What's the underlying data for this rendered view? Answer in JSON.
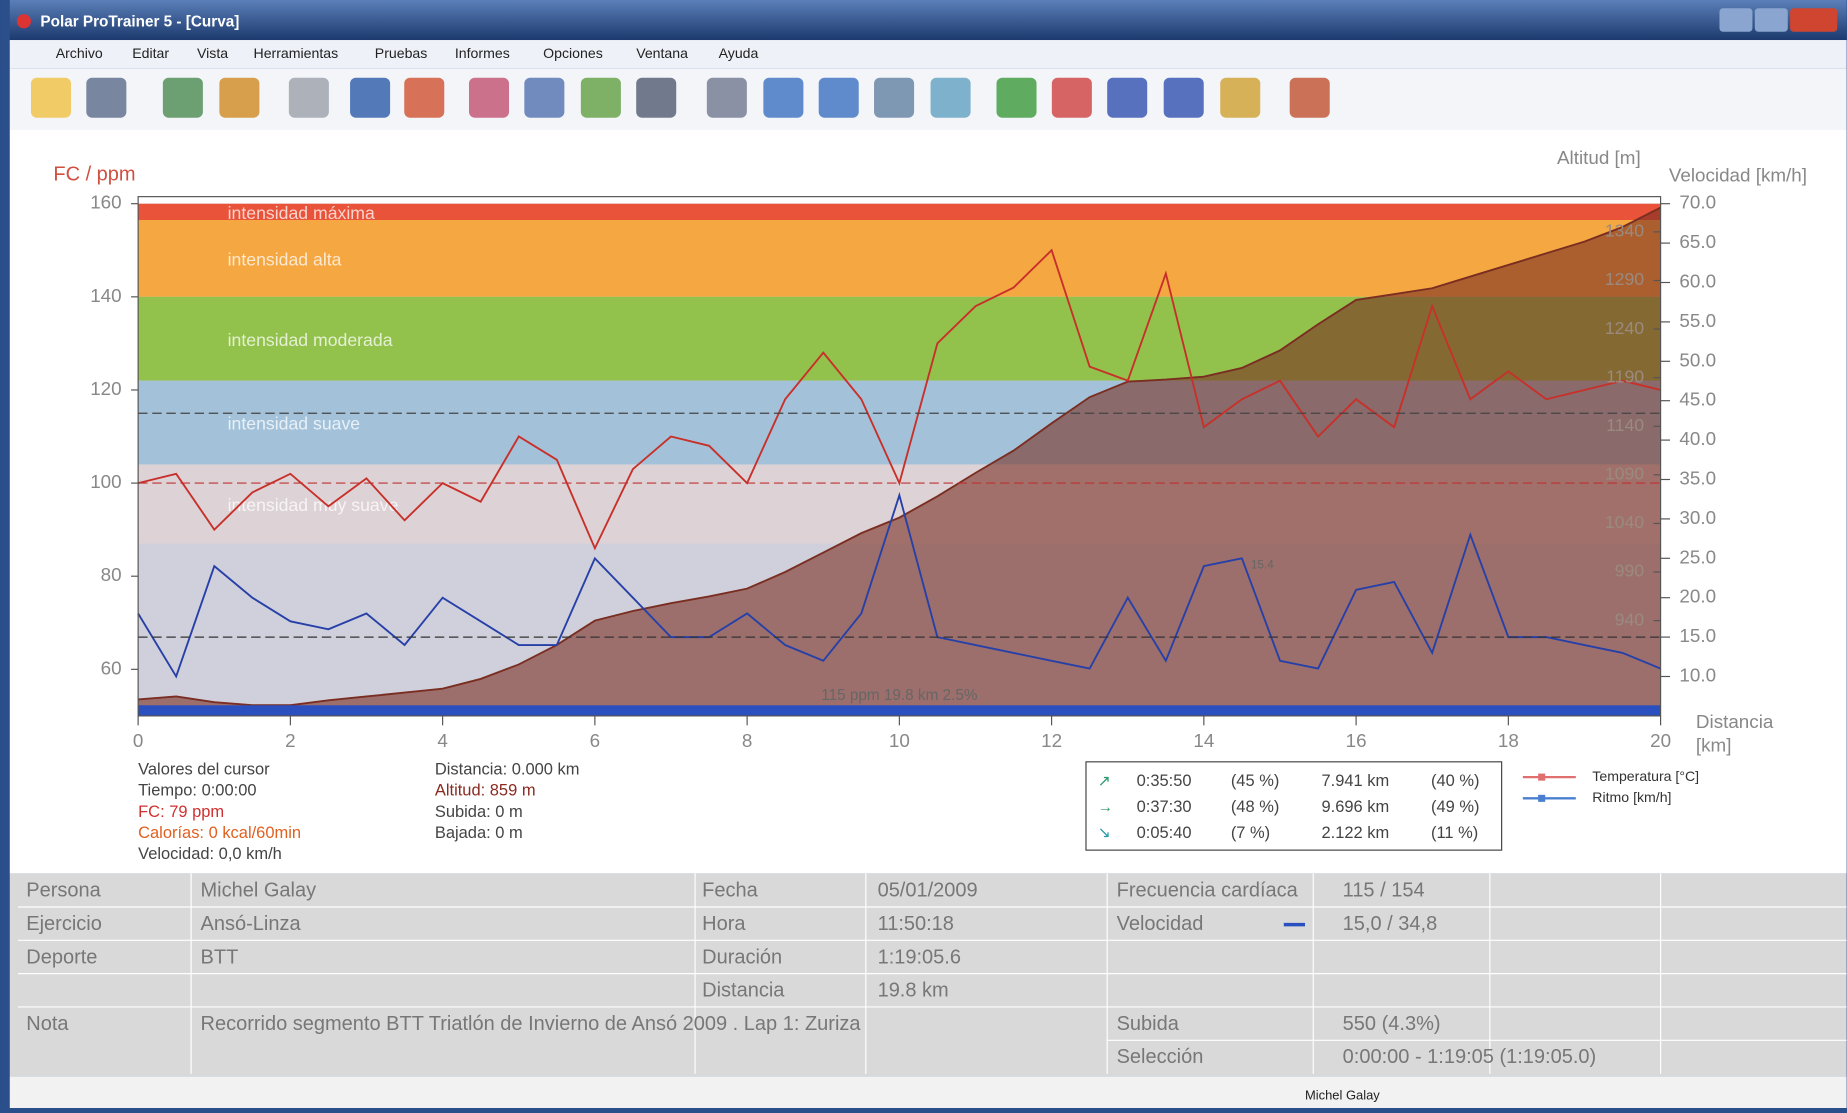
{
  "window": {
    "title": "Polar ProTrainer 5 - [Curva]",
    "menu": [
      "Archivo",
      "Editar",
      "Vista",
      "Herramientas",
      "Pruebas",
      "Informes",
      "Opciones",
      "Ventana",
      "Ayuda"
    ]
  },
  "chart_data": {
    "type": "line",
    "y_label": "FC / ppm",
    "y2_label": "Velocidad [km/h]",
    "y3_label": "Altitud [m]",
    "x_label": "Distancia",
    "x_unit": "[km]",
    "x": [
      0,
      0.5,
      1,
      1.5,
      2,
      2.5,
      3,
      3.5,
      4,
      4.5,
      5,
      5.5,
      6,
      6.5,
      7,
      7.5,
      8,
      8.5,
      9,
      9.5,
      10,
      10.5,
      11,
      11.5,
      12,
      12.5,
      13,
      13.5,
      14,
      14.5,
      15,
      15.5,
      16,
      16.5,
      17,
      17.5,
      18,
      18.5,
      19,
      19.5,
      20
    ],
    "xlim": [
      0,
      20
    ],
    "xticks": [
      0,
      2,
      4,
      6,
      8,
      10,
      12,
      14,
      16,
      18,
      20
    ],
    "ylim": [
      50,
      160
    ],
    "yticks": [
      60,
      80,
      100,
      120,
      140,
      160
    ],
    "y2lim": [
      5,
      70
    ],
    "y2ticks": [
      {
        "value": 10,
        "label": "10.0"
      },
      {
        "value": 15,
        "label": "15.0"
      },
      {
        "value": 20,
        "label": "20.0"
      },
      {
        "value": 25,
        "label": "25.0"
      },
      {
        "value": 30,
        "label": "30.0"
      },
      {
        "value": 35,
        "label": "35.0"
      },
      {
        "value": 40,
        "label": "40.0"
      },
      {
        "value": 45,
        "label": "45.0"
      },
      {
        "value": 50,
        "label": "50.0"
      },
      {
        "value": 55,
        "label": "55.0"
      },
      {
        "value": 60,
        "label": "60.0"
      },
      {
        "value": 65,
        "label": "65.0"
      },
      {
        "value": 70,
        "label": "70.0"
      }
    ],
    "y3lim": [
      842,
      1369
    ],
    "y3ticks": [
      940,
      990,
      1040,
      1090,
      1140,
      1190,
      1240,
      1290,
      1340
    ],
    "zones": [
      {
        "label": "intensidad máxima",
        "from": 156.5,
        "to": 160,
        "color": "#e8533a"
      },
      {
        "label": "intensidad alta",
        "from": 140,
        "to": 156.5,
        "color": "#f5a742"
      },
      {
        "label": "intensidad moderada",
        "from": 122,
        "to": 140,
        "color": "#93c24c"
      },
      {
        "label": "intensidad suave",
        "from": 104,
        "to": 122,
        "color": "#a3c2da"
      },
      {
        "label": "intensidad muy suave",
        "from": 87,
        "to": 104,
        "color": "#ddd3d6"
      }
    ],
    "ref_lines": [
      {
        "value": 115,
        "axis": "y",
        "color": "#444444"
      },
      {
        "value": 100,
        "axis": "y",
        "color": "#c03030"
      },
      {
        "value": 15,
        "axis": "y2",
        "color": "#333333"
      }
    ],
    "series": [
      {
        "axis": "y3",
        "color": "#7a2e22",
        "fill": true,
        "values": [
          859,
          862,
          856,
          853,
          853,
          858,
          862,
          866,
          870,
          880,
          895,
          915,
          940,
          950,
          958,
          965,
          973,
          990,
          1010,
          1030,
          1046,
          1068,
          1092,
          1115,
          1143,
          1170,
          1186,
          1188,
          1191,
          1200,
          1218,
          1245,
          1270,
          1276,
          1282,
          1294,
          1306,
          1318,
          1330,
          1345,
          1365
        ]
      },
      {
        "axis": "y",
        "color": "#c8302a",
        "fill": false,
        "values": [
          100,
          102,
          90,
          98,
          102,
          95,
          101,
          92,
          100,
          96,
          110,
          105,
          86,
          103,
          110,
          108,
          100,
          118,
          128,
          118,
          100,
          130,
          138,
          142,
          150,
          125,
          122,
          145,
          112,
          118,
          122,
          110,
          118,
          112,
          138,
          118,
          124,
          118,
          120,
          122,
          120
        ]
      },
      {
        "axis": "y2",
        "color": "#2740a8",
        "fill": false,
        "values": [
          18,
          10,
          24,
          20,
          17,
          16,
          18,
          14,
          20,
          17,
          14,
          14,
          25,
          20,
          15,
          15,
          18,
          14,
          12,
          18,
          33,
          15,
          14,
          13,
          12,
          11,
          20,
          12,
          24,
          25,
          12,
          11,
          21,
          22,
          13,
          28,
          15,
          15,
          14,
          13,
          11
        ]
      }
    ],
    "annotations": [
      "115 ppm 19.8 km 2.5%",
      "15.4"
    ],
    "legend": [
      {
        "name": "Temperatura [°C]",
        "color": "#e07070"
      },
      {
        "name": "Ritmo [km/h]",
        "color": "#4a7fd0"
      }
    ]
  },
  "cursor": {
    "title": "Valores del cursor",
    "left": [
      "Tiempo: 0:00:00",
      "FC: 79 ppm",
      "Calorías: 0 kcal/60min",
      "Velocidad: 0,0 km/h"
    ],
    "right": [
      "Distancia: 0.000 km",
      "Altitud: 859 m",
      "Subida: 0 m",
      "Bajada: 0 m"
    ]
  },
  "summary": [
    [
      "0:35:50",
      "(45 %)",
      "7.941 km",
      "(40 %)"
    ],
    [
      "0:37:30",
      "(48 %)",
      "9.696 km",
      "(49 %)"
    ],
    [
      "0:05:40",
      "(7 %)",
      "2.122 km",
      "(11 %)"
    ]
  ],
  "info": {
    "left": [
      [
        "Persona",
        "Michel Galay"
      ],
      [
        "Ejercicio",
        "Ansó-Linza"
      ],
      [
        "Deporte",
        "BTT"
      ],
      [
        "Nota",
        "Recorrido segmento BTT Triatlón de Invierno de Ansó 2009 . Lap 1: Zuriza"
      ]
    ],
    "middle": [
      [
        "Fecha",
        "05/01/2009"
      ],
      [
        "Hora",
        "11:50:18"
      ],
      [
        "Duración",
        "1:19:05.6"
      ],
      [
        "Distancia",
        "19.8 km"
      ]
    ],
    "right": [
      [
        "Frecuencia cardíaca",
        "115 / 154"
      ],
      [
        "Velocidad",
        "15,0 / 34,8"
      ],
      [
        "Subida",
        "550 (4.3%)"
      ],
      [
        "Selección",
        "0:00:00 - 1:19:05 (1:19:05.0)"
      ]
    ]
  },
  "footer": "Michel Galay"
}
